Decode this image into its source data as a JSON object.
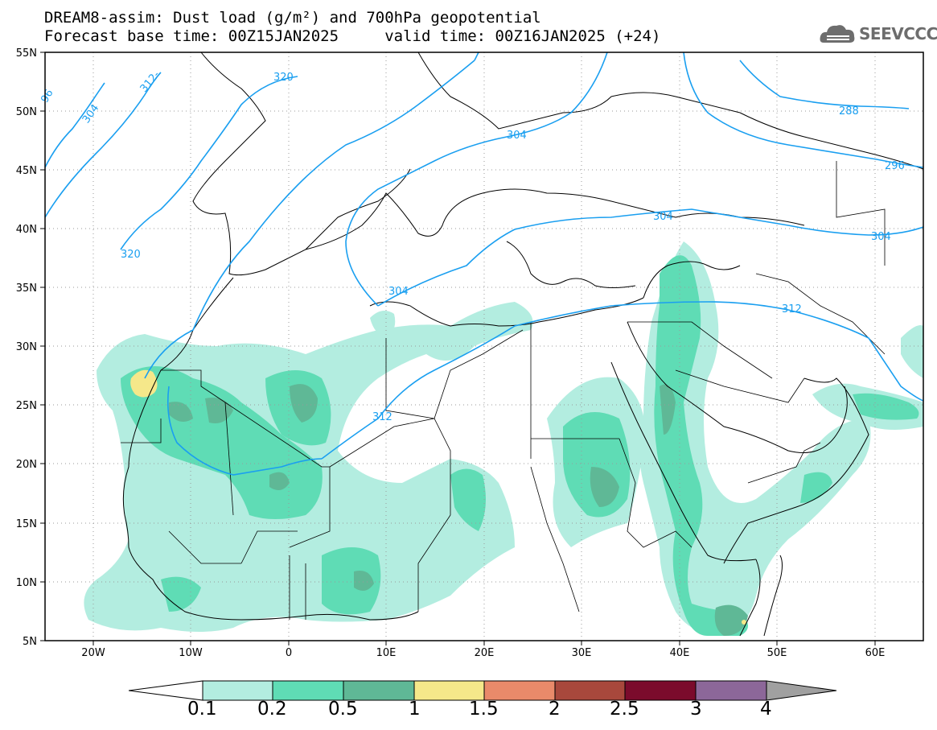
{
  "title": {
    "line1": "DREAM8-assim: Dust load (g/m²) and 700hPa geopotential",
    "line2": "Forecast base time: 00Z15JAN2025     valid time: 00Z16JAN2025 (+24)"
  },
  "logo": {
    "text": "SEEVCCC",
    "icon": "cloud-icon"
  },
  "axes": {
    "lat_labels": [
      "55N",
      "50N",
      "45N",
      "40N",
      "35N",
      "30N",
      "25N",
      "20N",
      "15N",
      "10N",
      "5N"
    ],
    "lon_labels": [
      "20W",
      "10W",
      "0",
      "10E",
      "20E",
      "30E",
      "40E",
      "50E",
      "60E"
    ]
  },
  "contours": {
    "labels": [
      {
        "text": "304",
        "key": "a"
      },
      {
        "text": "312-",
        "key": "b"
      },
      {
        "text": "320",
        "key": "c"
      },
      {
        "text": "320",
        "key": "d"
      },
      {
        "text": "304",
        "key": "e"
      },
      {
        "text": "288",
        "key": "f"
      },
      {
        "text": "296",
        "key": "g"
      },
      {
        "text": "304",
        "key": "h"
      },
      {
        "text": "304",
        "key": "i"
      },
      {
        "text": "304",
        "key": "j"
      },
      {
        "text": "312",
        "key": "k"
      },
      {
        "text": "312",
        "key": "l"
      },
      {
        "text": "96",
        "key": "m"
      }
    ],
    "color": "#1a9ff0"
  },
  "colorbar": {
    "levels": [
      "0.1",
      "0.2",
      "0.5",
      "1",
      "1.5",
      "2",
      "2.5",
      "3",
      "4"
    ],
    "colors": [
      "#ffffff",
      "#b3ede0",
      "#5fdcb5",
      "#5fb896",
      "#f5e88a",
      "#e98a6a",
      "#a8483c",
      "#7b0b2c",
      "#8c6799",
      "#a0a0a0"
    ]
  }
}
